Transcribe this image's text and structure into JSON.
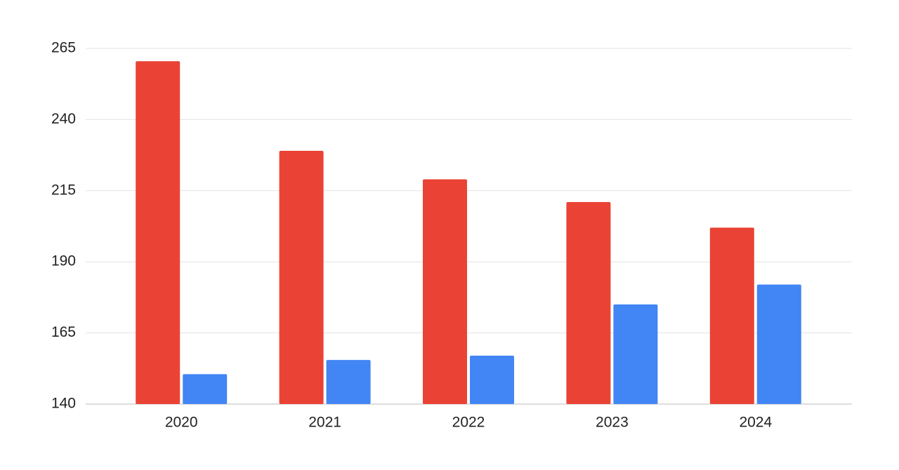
{
  "chart_data": {
    "type": "bar",
    "categories": [
      "2020",
      "2021",
      "2022",
      "2023",
      "2024"
    ],
    "series": [
      {
        "color": "#ea4335",
        "values": [
          260.5,
          229,
          219,
          211,
          202
        ]
      },
      {
        "color": "#4285f4",
        "values": [
          150.5,
          155.5,
          157,
          175,
          182
        ]
      }
    ],
    "ylim": [
      140,
      265
    ],
    "yticks": [
      140,
      165,
      190,
      215,
      240,
      265
    ],
    "grid": true
  }
}
